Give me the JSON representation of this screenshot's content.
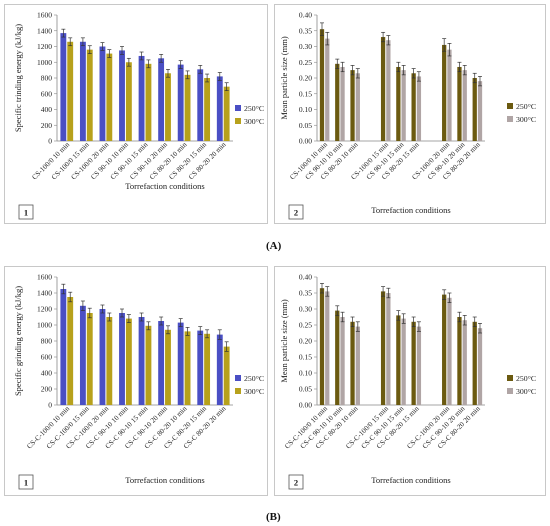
{
  "colors": {
    "c250": "#4a4fc4",
    "c300": "#b7a11c",
    "c250b": "#6b5a10",
    "c300b": "#b0a5a5"
  },
  "labels": {
    "A": "(A)",
    "B": "(B)",
    "p1": "1",
    "p2": "2",
    "p3": "1",
    "p4": "2",
    "xlabel": "Torrefaction conditions"
  },
  "chart_data": [
    {
      "type": "bar",
      "categories": [
        "CS-100/0 10 min",
        "CS-100/0 15 min",
        "CS-100/0 20 min",
        "CS 90-10 10 min",
        "CS 90-10 15 min",
        "CS 90-10 20 min",
        "CS 80-20 10 min",
        "CS 80-20 15 min",
        "CS 80-20 20 min"
      ],
      "series": [
        {
          "name": "250°C",
          "values": [
            1370,
            1260,
            1200,
            1150,
            1080,
            1050,
            970,
            910,
            820
          ],
          "errors": [
            50,
            50,
            50,
            50,
            50,
            50,
            50,
            50,
            50
          ]
        },
        {
          "name": "300°C",
          "values": [
            1260,
            1160,
            1110,
            1000,
            980,
            860,
            840,
            800,
            690
          ],
          "errors": [
            50,
            50,
            50,
            50,
            50,
            50,
            50,
            50,
            50
          ]
        }
      ],
      "xlabel": "Torrefaction conditions",
      "ylabel": "Specific trinding energy (kJ/kg)",
      "ylim": [
        0,
        1600
      ],
      "yticks": [
        0,
        200,
        400,
        600,
        800,
        1000,
        1200,
        1400,
        1600
      ],
      "legend": "right"
    },
    {
      "type": "bar",
      "categories": [
        "CS-100/0 10 min",
        "CS 90-10 10 min",
        "CS 80-20 10 min",
        "CS-100/0 15 min",
        "CS 90-10 15 min",
        "CS 80-20 15 min",
        "CS-100/0 20 min",
        "CS 90-10 20 min",
        "CS 80-20 20 min"
      ],
      "series": [
        {
          "name": "250°C",
          "values": [
            0.355,
            0.245,
            0.225,
            0.33,
            0.235,
            0.215,
            0.305,
            0.235,
            0.2
          ],
          "errors": [
            0.02,
            0.015,
            0.015,
            0.015,
            0.015,
            0.015,
            0.02,
            0.015,
            0.015
          ]
        },
        {
          "name": "300°C",
          "values": [
            0.325,
            0.235,
            0.215,
            0.32,
            0.225,
            0.205,
            0.29,
            0.225,
            0.19
          ],
          "errors": [
            0.02,
            0.015,
            0.015,
            0.015,
            0.015,
            0.015,
            0.02,
            0.015,
            0.015
          ]
        }
      ],
      "xlabel": "Torrefaction conditions",
      "ylabel": "Mean particle size (mm)",
      "ylim": [
        0,
        0.4
      ],
      "yticks": [
        0.0,
        0.05,
        0.1,
        0.15,
        0.2,
        0.25,
        0.3,
        0.35,
        0.4
      ],
      "legend": "right"
    },
    {
      "type": "bar",
      "categories": [
        "CS-C-100/0 10 min",
        "CS-C-100/0 15 min",
        "CS-C-100/0 20 min",
        "CS-C 90-10 10 min",
        "CS-C 90-10 15 min",
        "CS-C 90-10 20 min",
        "CS-C 80-20 10 min",
        "CS-C 80-20 15 min",
        "CS-C 80-20 20 min"
      ],
      "series": [
        {
          "name": "250°C",
          "values": [
            1450,
            1240,
            1200,
            1150,
            1100,
            1050,
            1030,
            930,
            880
          ],
          "errors": [
            60,
            60,
            50,
            50,
            50,
            50,
            50,
            50,
            60
          ]
        },
        {
          "name": "300°C",
          "values": [
            1350,
            1150,
            1100,
            1080,
            990,
            940,
            920,
            890,
            730
          ],
          "errors": [
            60,
            60,
            50,
            50,
            50,
            50,
            50,
            50,
            60
          ]
        }
      ],
      "xlabel": "Torrefaction conditions",
      "ylabel": "Specific grinding energy (kJ/kg)",
      "ylim": [
        0,
        1600
      ],
      "yticks": [
        0,
        200,
        400,
        600,
        800,
        1000,
        1200,
        1400,
        1600
      ],
      "legend": "right"
    },
    {
      "type": "bar",
      "categories": [
        "CS-C-100/0 10 min",
        "CS-C 90-10 10 min",
        "CS-C 80-20 10 min",
        "CS-C-100/0 15 min",
        "CS-C 90-10 15 min",
        "CS-C 80-20 15 min",
        "CS-C-100/0 20 min",
        "CS-C 90-10 20 min",
        "CS-C 80-20 20 min"
      ],
      "series": [
        {
          "name": "250°C",
          "values": [
            0.365,
            0.295,
            0.26,
            0.355,
            0.28,
            0.26,
            0.345,
            0.275,
            0.26
          ],
          "errors": [
            0.015,
            0.015,
            0.015,
            0.015,
            0.015,
            0.015,
            0.015,
            0.015,
            0.015
          ]
        },
        {
          "name": "300°C",
          "values": [
            0.355,
            0.275,
            0.245,
            0.35,
            0.27,
            0.245,
            0.335,
            0.265,
            0.24
          ],
          "errors": [
            0.015,
            0.015,
            0.015,
            0.015,
            0.015,
            0.015,
            0.015,
            0.015,
            0.015
          ]
        }
      ],
      "xlabel": "Torrefaction conditions",
      "ylabel": "Mean particle size (mm)",
      "ylim": [
        0,
        0.4
      ],
      "yticks": [
        0.0,
        0.05,
        0.1,
        0.15,
        0.2,
        0.25,
        0.3,
        0.35,
        0.4
      ],
      "legend": "right"
    }
  ]
}
